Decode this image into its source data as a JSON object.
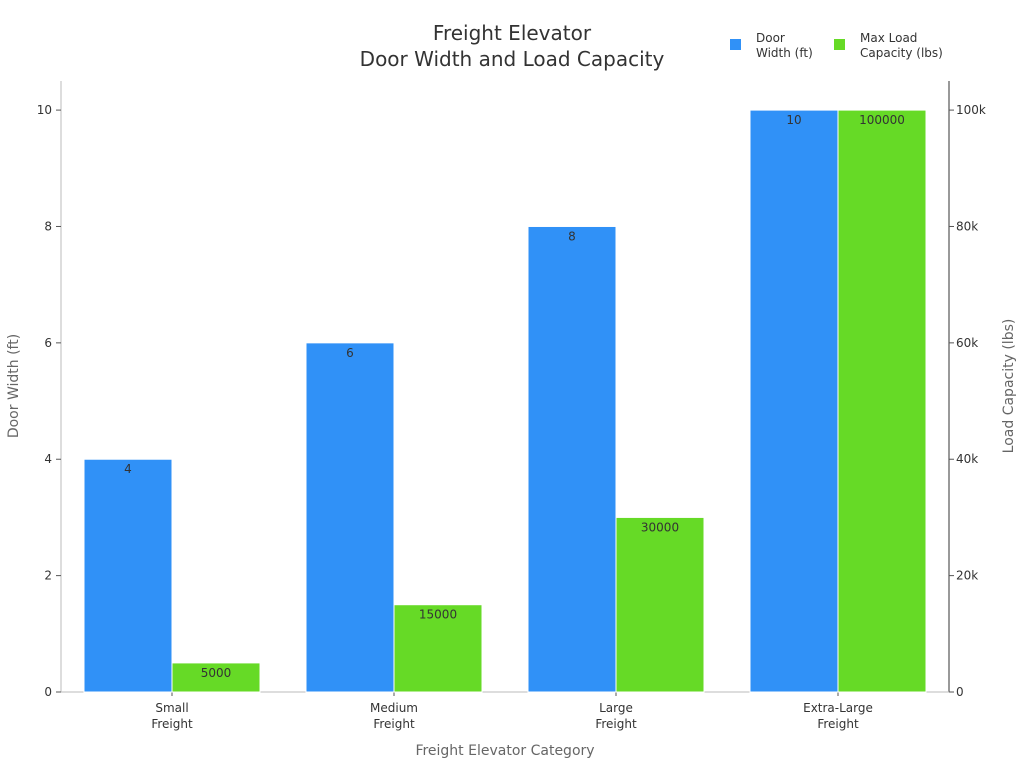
{
  "chart_data": {
    "type": "bar",
    "title": [
      "Freight Elevator",
      "Door Width and Load Capacity"
    ],
    "xlabel": "Freight Elevator Category",
    "ylabel_left": "Door Width (ft)",
    "ylabel_right": "Load Capacity (lbs)",
    "categories": [
      [
        "Small",
        "Freight"
      ],
      [
        "Medium",
        "Freight"
      ],
      [
        "Large",
        "Freight"
      ],
      [
        "Extra-Large",
        "Freight"
      ]
    ],
    "series": [
      {
        "name": [
          "Door",
          "Width (ft)"
        ],
        "axis": "left",
        "color": "#3091f7",
        "values": [
          4,
          6,
          8,
          10
        ]
      },
      {
        "name": [
          "Max Load",
          "Capacity (lbs)"
        ],
        "axis": "right",
        "color": "#66da26",
        "values": [
          5000,
          15000,
          30000,
          100000
        ]
      }
    ],
    "y_left": {
      "lim": [
        0,
        10.5
      ],
      "ticks": [
        0,
        2,
        4,
        6,
        8,
        10
      ],
      "tick_labels": [
        "0",
        "2",
        "4",
        "6",
        "8",
        "10"
      ]
    },
    "y_right": {
      "lim": [
        0,
        105000
      ],
      "ticks": [
        0,
        20000,
        40000,
        60000,
        80000,
        100000
      ],
      "tick_labels": [
        "0",
        "20k",
        "40k",
        "60k",
        "80k",
        "100k"
      ]
    },
    "legend_position": "top-right",
    "grid": false
  }
}
